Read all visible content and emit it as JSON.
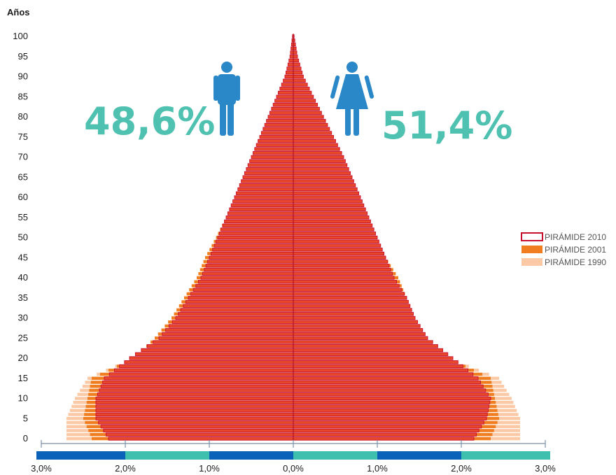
{
  "chart_data": {
    "type": "population-pyramid",
    "y_axis_title": "Años",
    "y_ticks": [
      0,
      5,
      10,
      15,
      20,
      25,
      30,
      35,
      40,
      45,
      50,
      55,
      60,
      65,
      70,
      75,
      80,
      85,
      90,
      95,
      100
    ],
    "x_ticks": [
      "3,0%",
      "2,0%",
      "1,0%",
      "0,0%",
      "1,0%",
      "2,0%",
      "3,0%"
    ],
    "x_range_percent": [
      -3,
      3
    ],
    "male_percent_label": "48,6%",
    "female_percent_label": "51,4%",
    "legend_position": "right",
    "colors": {
      "p2010_fill": "#e8482a",
      "p2010_stroke": "#c8102e",
      "p2001": "#f07d1f",
      "p1990": "#fbc9a6",
      "percent_text": "#4fc1b0",
      "icon": "#2a87c8",
      "bar_dark": "#0a63b8",
      "bar_teal": "#3fbfad"
    },
    "legend": [
      {
        "key": "p2010",
        "label": "PIRÁMIDE 2010"
      },
      {
        "key": "p2001",
        "label": "PIRÁMIDE 2001"
      },
      {
        "key": "p1990",
        "label": "PIRÁMIDE 1990"
      }
    ],
    "series": [
      {
        "key": "p1990",
        "name": "PIRÁMIDE 1990",
        "ages": [
          0,
          5,
          10,
          15,
          20,
          25,
          30,
          35,
          40,
          45,
          50,
          55,
          60,
          65,
          70,
          75,
          80,
          85,
          90,
          95,
          100
        ],
        "male": [
          2.7,
          2.7,
          2.6,
          2.45,
          1.9,
          1.65,
          1.45,
          1.3,
          1.1,
          1.0,
          0.88,
          0.78,
          0.68,
          0.58,
          0.48,
          0.38,
          0.28,
          0.18,
          0.1,
          0.04,
          0.01
        ],
        "female": [
          2.7,
          2.7,
          2.6,
          2.45,
          1.85,
          1.6,
          1.4,
          1.3,
          1.15,
          1.05,
          0.95,
          0.85,
          0.75,
          0.65,
          0.55,
          0.45,
          0.33,
          0.22,
          0.12,
          0.05,
          0.01
        ]
      },
      {
        "key": "p2001",
        "name": "PIRÁMIDE 2001",
        "ages": [
          0,
          5,
          10,
          15,
          20,
          25,
          30,
          35,
          40,
          45,
          50,
          55,
          60,
          65,
          70,
          75,
          80,
          85,
          90,
          95,
          100
        ],
        "male": [
          2.4,
          2.5,
          2.45,
          2.4,
          1.9,
          1.65,
          1.45,
          1.3,
          1.15,
          1.05,
          0.92,
          0.8,
          0.68,
          0.58,
          0.48,
          0.38,
          0.28,
          0.18,
          0.1,
          0.04,
          0.01
        ],
        "female": [
          2.35,
          2.45,
          2.4,
          2.35,
          1.85,
          1.6,
          1.45,
          1.35,
          1.25,
          1.1,
          1.0,
          0.9,
          0.78,
          0.68,
          0.58,
          0.47,
          0.35,
          0.23,
          0.12,
          0.05,
          0.01
        ]
      },
      {
        "key": "p2010",
        "name": "PIRÁMIDE 2010",
        "ages": [
          0,
          5,
          10,
          15,
          20,
          25,
          30,
          35,
          40,
          45,
          50,
          55,
          60,
          65,
          70,
          75,
          80,
          85,
          90,
          95,
          100
        ],
        "male": [
          2.2,
          2.35,
          2.35,
          2.25,
          1.95,
          1.6,
          1.4,
          1.25,
          1.1,
          1.0,
          0.9,
          0.8,
          0.7,
          0.6,
          0.5,
          0.4,
          0.3,
          0.2,
          0.1,
          0.04,
          0.01
        ],
        "female": [
          2.15,
          2.3,
          2.35,
          2.2,
          1.9,
          1.6,
          1.45,
          1.35,
          1.2,
          1.1,
          1.0,
          0.9,
          0.8,
          0.7,
          0.6,
          0.48,
          0.36,
          0.24,
          0.12,
          0.05,
          0.01
        ]
      }
    ]
  }
}
